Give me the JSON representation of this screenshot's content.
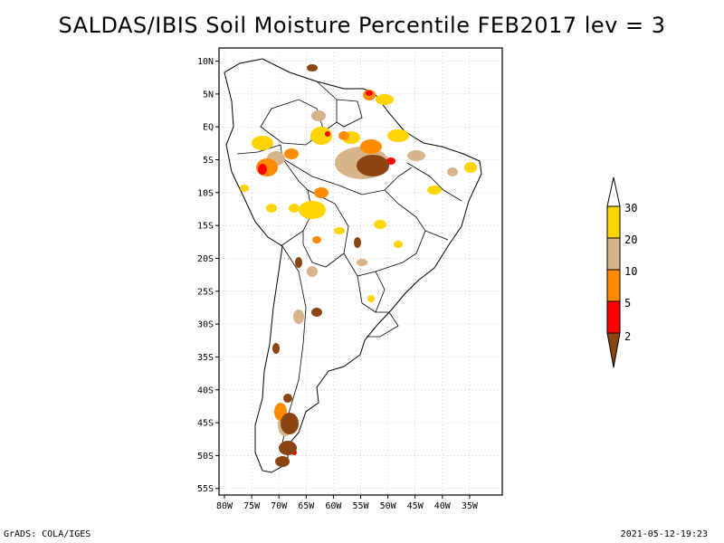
{
  "title": "SALDAS/IBIS Soil Moisture Percentile FEB2017 lev = 3",
  "footer": {
    "left": "GrADS: COLA/IGES",
    "right": "2021-05-12-19:23"
  },
  "map": {
    "lon_range": [
      -81,
      -29
    ],
    "lat_range": [
      -56,
      12
    ],
    "x_ticks": [
      {
        "lon": -80,
        "label": "80W"
      },
      {
        "lon": -75,
        "label": "75W"
      },
      {
        "lon": -70,
        "label": "70W"
      },
      {
        "lon": -65,
        "label": "65W"
      },
      {
        "lon": -60,
        "label": "60W"
      },
      {
        "lon": -55,
        "label": "55W"
      },
      {
        "lon": -50,
        "label": "50W"
      },
      {
        "lon": -45,
        "label": "45W"
      },
      {
        "lon": -40,
        "label": "40W"
      },
      {
        "lon": -35,
        "label": "35W"
      }
    ],
    "y_ticks": [
      {
        "lat": 10,
        "label": "10N"
      },
      {
        "lat": 5,
        "label": "5N"
      },
      {
        "lat": 0,
        "label": "EQ"
      },
      {
        "lat": -5,
        "label": "5S"
      },
      {
        "lat": -10,
        "label": "10S"
      },
      {
        "lat": -15,
        "label": "15S"
      },
      {
        "lat": -20,
        "label": "20S"
      },
      {
        "lat": -25,
        "label": "25S"
      },
      {
        "lat": -30,
        "label": "30S"
      },
      {
        "lat": -35,
        "label": "35S"
      },
      {
        "lat": -40,
        "label": "40S"
      },
      {
        "lat": -45,
        "label": "45S"
      },
      {
        "lat": -50,
        "label": "50S"
      },
      {
        "lat": -55,
        "label": "55S"
      }
    ],
    "grid": true
  },
  "colorbar": {
    "labels": [
      "30",
      "20",
      "10",
      "5",
      "2"
    ],
    "colors": [
      "#ffd400",
      "#d8b48a",
      "#ff8c00",
      "#ff0000",
      "#8b4513"
    ]
  },
  "colors": {
    "p2": "#8b4513",
    "p5": "#ff0000",
    "p10": "#ff8c00",
    "p20": "#d8b48a",
    "p30": "#ffd400"
  }
}
